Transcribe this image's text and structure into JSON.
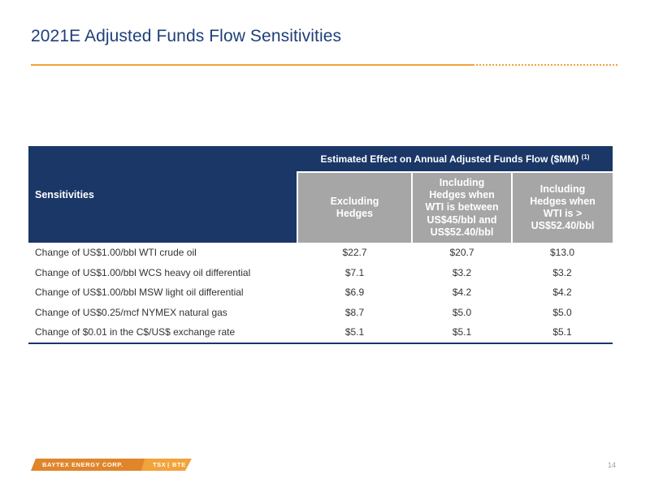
{
  "slide": {
    "title": "2021E Adjusted Funds Flow Sensitivities",
    "page_number": "14"
  },
  "table": {
    "sensitivities_header": "Sensitivities",
    "group_header": "Estimated Effect on Annual Adjusted Funds Flow ($MM)",
    "group_footnote": "(1)",
    "columns": [
      "Excluding Hedges",
      "Including Hedges when WTI is between US$45/bbl and US$52.40/bbl",
      "Including Hedges when WTI is > US$52.40/bbl"
    ],
    "rows": [
      {
        "label": "Change of US$1.00/bbl WTI crude oil",
        "values": [
          "$22.7",
          "$20.7",
          "$13.0"
        ]
      },
      {
        "label": "Change of US$1.00/bbl WCS heavy oil differential",
        "values": [
          "$7.1",
          "$3.2",
          "$3.2"
        ]
      },
      {
        "label": "Change of US$1.00/bbl MSW light oil differential",
        "values": [
          "$6.9",
          "$4.2",
          "$4.2"
        ]
      },
      {
        "label": "Change of US$0.25/mcf NYMEX natural gas",
        "values": [
          "$8.7",
          "$5.0",
          "$5.0"
        ]
      },
      {
        "label": "Change of $0.01 in the C$/US$ exchange rate",
        "values": [
          "$5.1",
          "$5.1",
          "$5.1"
        ]
      }
    ]
  },
  "footer": {
    "company": "BAYTEX ENERGY CORP.",
    "exchange": "TSX",
    "ticker": "BTE"
  },
  "colors": {
    "title": "#1f3f7a",
    "accent_orange": "#f2a33a",
    "header_navy": "#1b3767",
    "header_gray": "#a6a6a6"
  }
}
